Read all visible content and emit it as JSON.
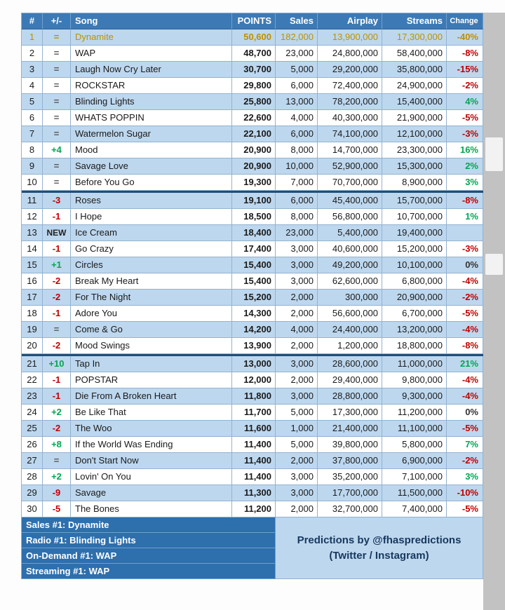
{
  "colors": {
    "header_bg": "#3D7AB5",
    "row_alt": "#BDD7EE",
    "gold": "#BF9000",
    "red": "#C00000",
    "green": "#00A651",
    "eq": "#595959",
    "divider": "#1F4E79",
    "grid": "#94B2CF",
    "footer_left_bg": "#2E6FAD",
    "footer_right_bg": "#BDD7EE",
    "footer_text": "#17375E",
    "scroll_track": "#C2C2C2",
    "scroll_thumb": "#F2F2F2"
  },
  "chart_data": {
    "type": "table",
    "columns": [
      "#",
      "+/-",
      "Song",
      "POINTS",
      "Sales",
      "Airplay",
      "Streams",
      "Change"
    ],
    "gold_row_rank": 1,
    "dividers_after": [
      10,
      20
    ],
    "rows": [
      [
        "1",
        "=",
        "Dynamite",
        "50,600",
        "182,000",
        "13,900,000",
        "17,300,000",
        "-40%"
      ],
      [
        "2",
        "=",
        "WAP",
        "48,700",
        "23,000",
        "24,800,000",
        "58,400,000",
        "-8%"
      ],
      [
        "3",
        "=",
        "Laugh Now Cry Later",
        "30,700",
        "5,000",
        "29,200,000",
        "35,800,000",
        "-15%"
      ],
      [
        "4",
        "=",
        "ROCKSTAR",
        "29,800",
        "6,000",
        "72,400,000",
        "24,900,000",
        "-2%"
      ],
      [
        "5",
        "=",
        "Blinding Lights",
        "25,800",
        "13,000",
        "78,200,000",
        "15,400,000",
        "4%"
      ],
      [
        "6",
        "=",
        "WHATS POPPIN",
        "22,600",
        "4,000",
        "40,300,000",
        "21,900,000",
        "-5%"
      ],
      [
        "7",
        "=",
        "Watermelon Sugar",
        "22,100",
        "6,000",
        "74,100,000",
        "12,100,000",
        "-3%"
      ],
      [
        "8",
        "+4",
        "Mood",
        "20,900",
        "8,000",
        "14,700,000",
        "23,300,000",
        "16%"
      ],
      [
        "9",
        "=",
        "Savage Love",
        "20,900",
        "10,000",
        "52,900,000",
        "15,300,000",
        "2%"
      ],
      [
        "10",
        "=",
        "Before You Go",
        "19,300",
        "7,000",
        "70,700,000",
        "8,900,000",
        "3%"
      ],
      [
        "11",
        "-3",
        "Roses",
        "19,100",
        "6,000",
        "45,400,000",
        "15,700,000",
        "-8%"
      ],
      [
        "12",
        "-1",
        "I Hope",
        "18,500",
        "8,000",
        "56,800,000",
        "10,700,000",
        "1%"
      ],
      [
        "13",
        "NEW",
        "Ice Cream",
        "18,400",
        "23,000",
        "5,400,000",
        "19,400,000",
        ""
      ],
      [
        "14",
        "-1",
        "Go Crazy",
        "17,400",
        "3,000",
        "40,600,000",
        "15,200,000",
        "-3%"
      ],
      [
        "15",
        "+1",
        "Circles",
        "15,400",
        "3,000",
        "49,200,000",
        "10,100,000",
        "0%"
      ],
      [
        "16",
        "-2",
        "Break My Heart",
        "15,400",
        "3,000",
        "62,600,000",
        "6,800,000",
        "-4%"
      ],
      [
        "17",
        "-2",
        "For The Night",
        "15,200",
        "2,000",
        "300,000",
        "20,900,000",
        "-2%"
      ],
      [
        "18",
        "-1",
        "Adore You",
        "14,300",
        "2,000",
        "56,600,000",
        "6,700,000",
        "-5%"
      ],
      [
        "19",
        "=",
        "Come & Go",
        "14,200",
        "4,000",
        "24,400,000",
        "13,200,000",
        "-4%"
      ],
      [
        "20",
        "-2",
        "Mood Swings",
        "13,900",
        "2,000",
        "1,200,000",
        "18,800,000",
        "-8%"
      ],
      [
        "21",
        "+10",
        "Tap In",
        "13,000",
        "3,000",
        "28,600,000",
        "11,000,000",
        "21%"
      ],
      [
        "22",
        "-1",
        "POPSTAR",
        "12,000",
        "2,000",
        "29,400,000",
        "9,800,000",
        "-4%"
      ],
      [
        "23",
        "-1",
        "Die From A Broken Heart",
        "11,800",
        "3,000",
        "28,800,000",
        "9,300,000",
        "-4%"
      ],
      [
        "24",
        "+2",
        "Be Like That",
        "11,700",
        "5,000",
        "17,300,000",
        "11,200,000",
        "0%"
      ],
      [
        "25",
        "-2",
        "The Woo",
        "11,600",
        "1,000",
        "21,400,000",
        "11,100,000",
        "-5%"
      ],
      [
        "26",
        "+8",
        "If the World Was Ending",
        "11,400",
        "5,000",
        "39,800,000",
        "5,800,000",
        "7%"
      ],
      [
        "27",
        "=",
        "Don't Start Now",
        "11,400",
        "2,000",
        "37,800,000",
        "6,900,000",
        "-2%"
      ],
      [
        "28",
        "+2",
        "Lovin' On You",
        "11,400",
        "3,000",
        "35,200,000",
        "7,100,000",
        "3%"
      ],
      [
        "29",
        "-9",
        "Savage",
        "11,300",
        "3,000",
        "17,700,000",
        "11,500,000",
        "-10%"
      ],
      [
        "30",
        "-5",
        "The Bones",
        "11,200",
        "2,000",
        "32,700,000",
        "7,400,000",
        "-5%"
      ]
    ]
  },
  "footer": {
    "left_items": [
      "Sales #1: Dynamite",
      "Radio #1: Blinding Lights",
      "On-Demand #1: WAP",
      "Streaming #1: WAP"
    ],
    "right_line1": "Predictions by @fhaspredictions",
    "right_line2": "(Twitter / Instagram)"
  }
}
